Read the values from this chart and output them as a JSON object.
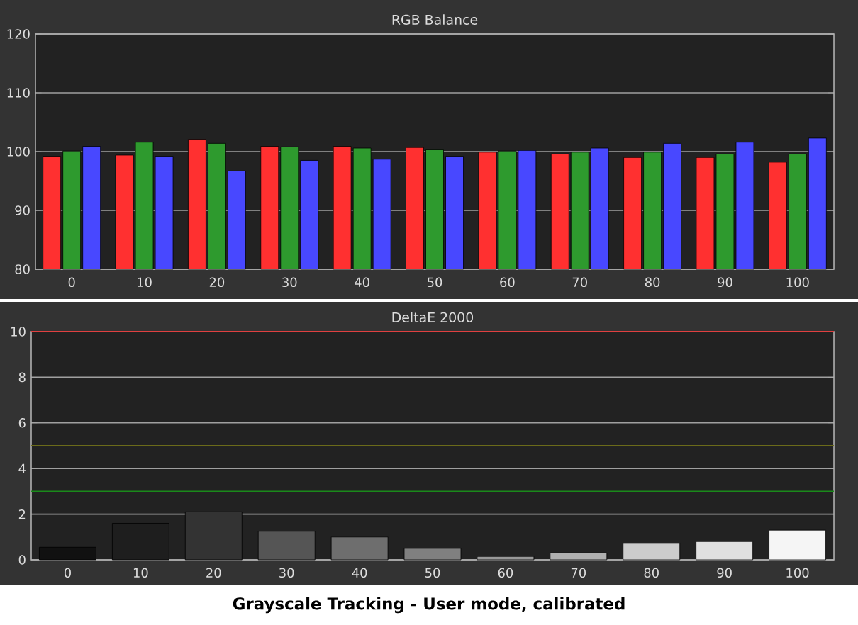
{
  "chart_data": [
    {
      "type": "bar",
      "title": "RGB Balance",
      "categories": [
        "0",
        "10",
        "20",
        "30",
        "40",
        "50",
        "60",
        "70",
        "80",
        "90",
        "100"
      ],
      "series": [
        {
          "color": "#ff3030",
          "values": [
            99.2,
            99.4,
            102.1,
            100.9,
            100.9,
            100.7,
            99.9,
            99.6,
            99.0,
            99.0,
            98.2
          ]
        },
        {
          "color": "#2e9a2e",
          "values": [
            100.1,
            101.6,
            101.4,
            100.8,
            100.6,
            100.4,
            100.1,
            99.9,
            99.9,
            99.6,
            99.6
          ]
        },
        {
          "color": "#4848ff",
          "values": [
            100.9,
            99.2,
            96.7,
            98.5,
            98.7,
            99.2,
            100.2,
            100.6,
            101.4,
            101.6,
            102.3
          ]
        }
      ],
      "ylim": [
        80,
        120
      ],
      "yticks": [
        80,
        90,
        100,
        110,
        120
      ],
      "grid": "y"
    },
    {
      "type": "bar",
      "title": "DeltaE 2000",
      "categories": [
        "0",
        "10",
        "20",
        "30",
        "40",
        "50",
        "60",
        "70",
        "80",
        "90",
        "100"
      ],
      "values": [
        0.55,
        1.6,
        2.1,
        1.25,
        1.0,
        0.5,
        0.15,
        0.3,
        0.75,
        0.8,
        1.3
      ],
      "colors": [
        "#111111",
        "#1e1e1e",
        "#333333",
        "#555555",
        "#6e6e6e",
        "#808080",
        "#999999",
        "#b0b0b0",
        "#cccccc",
        "#e0e0e0",
        "#f5f5f5"
      ],
      "ylim": [
        0,
        10
      ],
      "yticks": [
        0,
        2,
        4,
        6,
        8,
        10
      ],
      "grid": "y",
      "ref_lines": [
        {
          "axis": "y",
          "value": 10,
          "color": "#e04040"
        },
        {
          "axis": "y",
          "value": 5,
          "color": "#6b6b1a"
        },
        {
          "axis": "y",
          "value": 3,
          "color": "#1a8a1a"
        }
      ],
      "annotations": [
        "Grayscale Tracking - User mode, calibrated"
      ]
    }
  ]
}
